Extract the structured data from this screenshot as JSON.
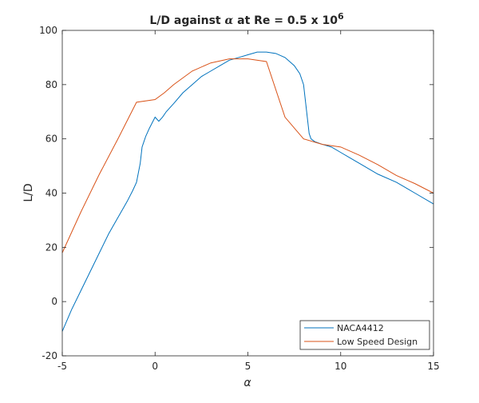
{
  "chart_data": {
    "type": "line",
    "title": {
      "prefix": "L/D against ",
      "alpha": "α",
      "middle": " at Re = 0.5 x 10",
      "sup": "6"
    },
    "xlabel": "α",
    "ylabel": "L/D",
    "xlim": [
      -5,
      15
    ],
    "ylim": [
      -20,
      100
    ],
    "xticks": [
      -5,
      0,
      5,
      10,
      15
    ],
    "yticks": [
      -20,
      0,
      20,
      40,
      60,
      80,
      100
    ],
    "grid": false,
    "legend_position": "bottom-right",
    "series": [
      {
        "name": "NACA4412",
        "color": "#0072BD",
        "x": [
          -5,
          -4.5,
          -4,
          -3.5,
          -3,
          -2.5,
          -2,
          -1.5,
          -1.2,
          -1,
          -0.8,
          -0.7,
          -0.6,
          -0.5,
          -0.3,
          0,
          0.2,
          0.4,
          0.6,
          1,
          1.5,
          2,
          2.5,
          3,
          3.5,
          4,
          4.5,
          5,
          5.5,
          6,
          6.5,
          7,
          7.5,
          7.8,
          8,
          8.1,
          8.2,
          8.3,
          8.4,
          8.6,
          9,
          9.5,
          10,
          10.5,
          11,
          12,
          13,
          13.5,
          14,
          15
        ],
        "y": [
          -11,
          -3,
          4,
          11,
          18,
          25,
          31,
          37,
          41,
          44,
          51,
          57,
          59,
          61,
          64,
          68,
          66.5,
          68,
          70,
          73,
          77,
          80,
          83,
          85,
          87,
          89,
          90,
          91,
          92,
          92,
          91.5,
          90,
          87,
          84,
          80,
          74,
          68,
          62,
          60,
          59,
          58,
          57,
          55,
          53,
          51,
          47,
          44,
          42,
          40,
          36
        ]
      },
      {
        "name": "Low Speed Design",
        "color": "#D95319",
        "x": [
          -5,
          -4,
          -3,
          -2,
          -1,
          0,
          0.5,
          1,
          2,
          3,
          4,
          5,
          6,
          7,
          8,
          9,
          10,
          11,
          12,
          13,
          14,
          15
        ],
        "y": [
          18,
          33,
          47,
          60,
          73.5,
          74.5,
          77,
          80,
          85,
          88,
          89.5,
          89.5,
          88.5,
          68,
          60,
          58,
          57,
          54,
          50.5,
          46.5,
          43.5,
          40
        ]
      }
    ]
  }
}
